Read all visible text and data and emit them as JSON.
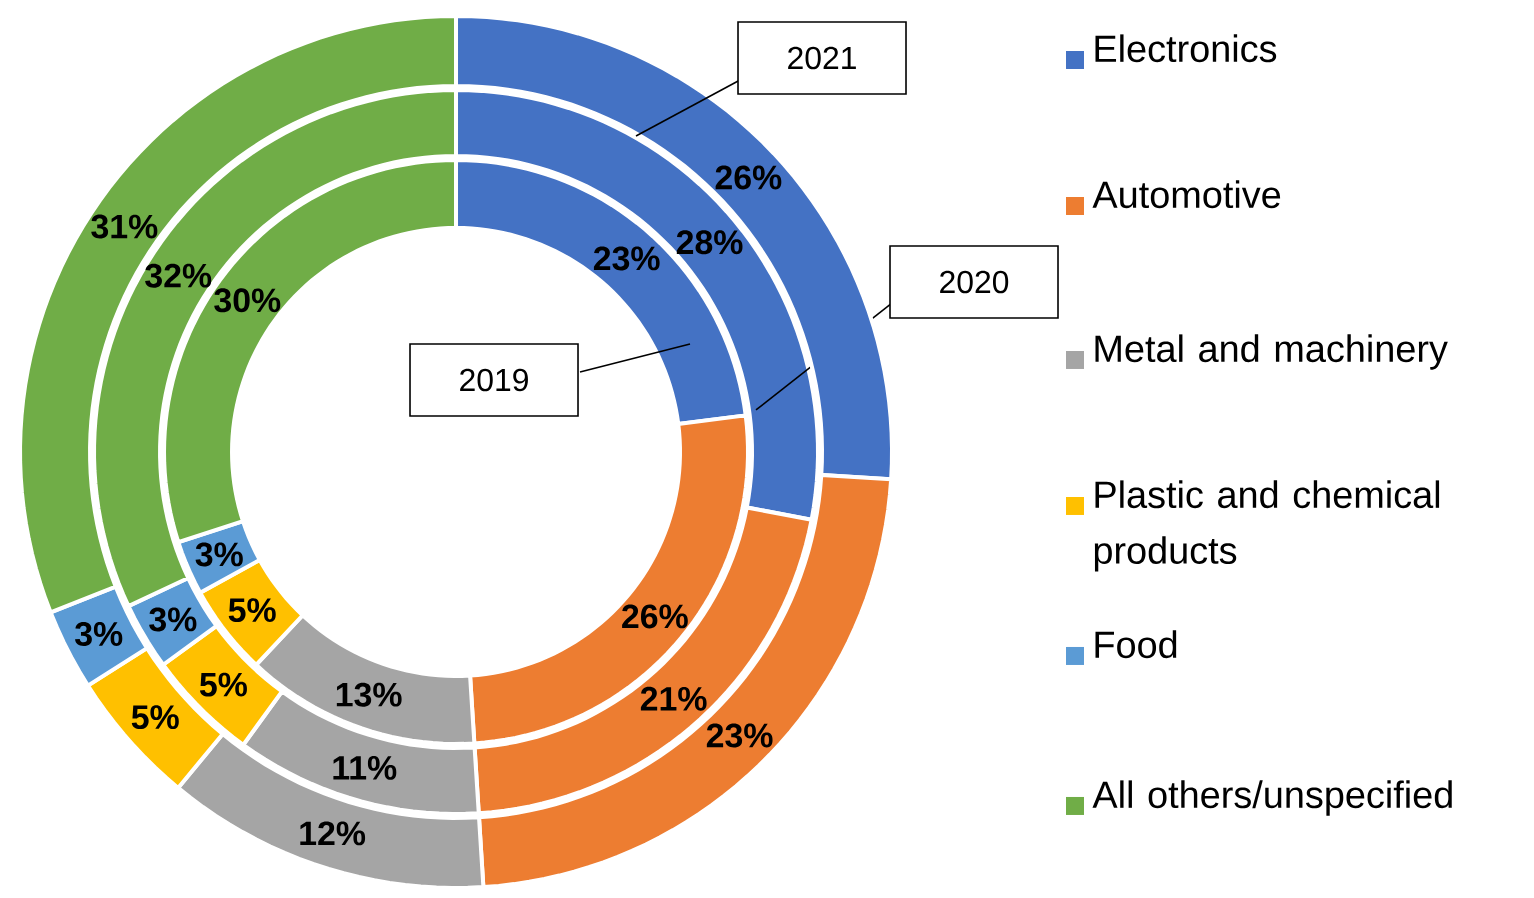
{
  "chart_data": {
    "type": "donut",
    "categories": [
      "Electronics",
      "Automotive",
      "Metal and machinery",
      "Plastic and chemical products",
      "Food",
      "All others/unspecified"
    ],
    "colors": [
      "#4472c4",
      "#ed7d31",
      "#a5a5a5",
      "#ffc000",
      "#5b9bd5",
      "#70ad47"
    ],
    "series": [
      {
        "name": "2019",
        "values": [
          23,
          26,
          13,
          5,
          3,
          30
        ],
        "value_labels": [
          "23%",
          "26%",
          "13%",
          "5%",
          "3%",
          "30%"
        ]
      },
      {
        "name": "2020",
        "values": [
          28,
          21,
          11,
          5,
          3,
          32
        ],
        "value_labels": [
          "28%",
          "21%",
          "11%",
          "5%",
          "3%",
          "32%"
        ]
      },
      {
        "name": "2021",
        "values": [
          26,
          23,
          12,
          5,
          3,
          31
        ],
        "value_labels": [
          "26%",
          "23%",
          "12%",
          "5%",
          "3%",
          "31%"
        ]
      }
    ],
    "legend": "right"
  }
}
